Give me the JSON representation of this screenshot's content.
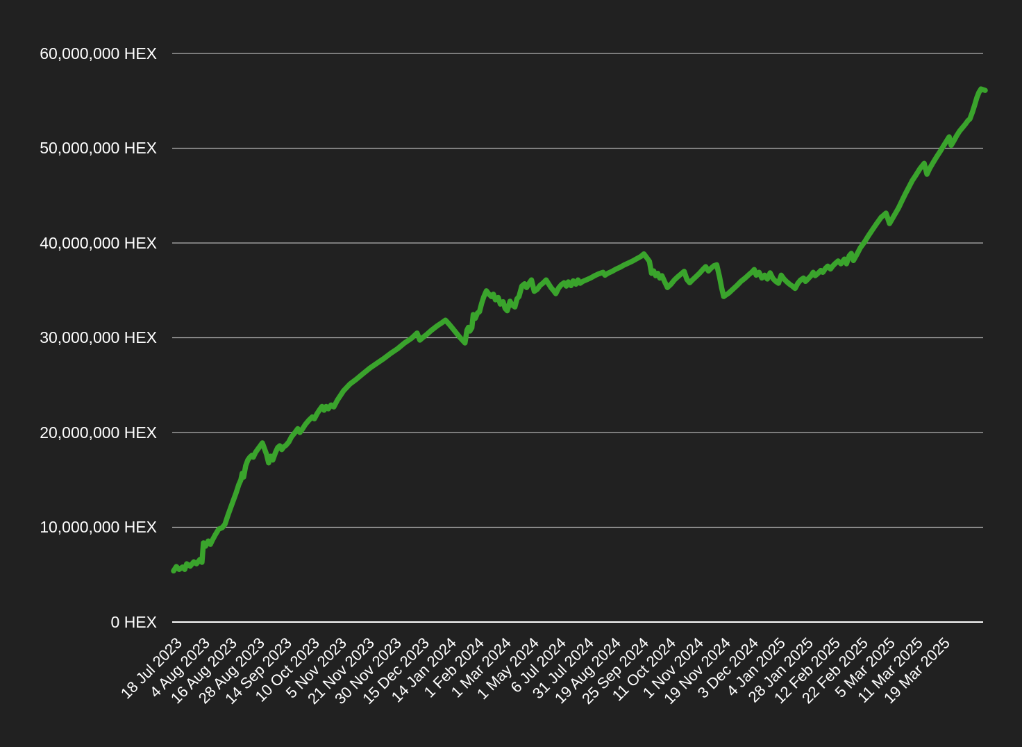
{
  "colors": {
    "background": "#212121",
    "line_green": "#3aa42c",
    "gridline_gray": "#b3b3b3",
    "axis_white": "#ffffff",
    "text_white": "#ffffff"
  },
  "chart_data": {
    "type": "line",
    "title": "",
    "xlabel": "",
    "ylabel": "",
    "grid": true,
    "legend_position": "none",
    "ylim_million_hex": [
      0,
      60
    ],
    "y_ticks": [
      {
        "label": "60,000,000 HEX",
        "value_million": 60
      },
      {
        "label": "50,000,000 HEX",
        "value_million": 50
      },
      {
        "label": "40,000,000 HEX",
        "value_million": 40
      },
      {
        "label": "30,000,000 HEX",
        "value_million": 30
      },
      {
        "label": "20,000,000 HEX",
        "value_million": 20
      },
      {
        "label": "10,000,000 HEX",
        "value_million": 10
      },
      {
        "label": "0 HEX",
        "value_million": 0
      }
    ],
    "x_tick_labels": [
      "18 Jul 2023",
      "4 Aug 2023",
      "16 Aug 2023",
      "28 Aug 2023",
      "14 Sep 2023",
      "10 Oct 2023",
      "5 Nov 2023",
      "21 Nov 2023",
      "30 Nov 2023",
      "15 Dec 2023",
      "14 Jan 2024",
      "1 Feb 2024",
      "1 Mar 2024",
      "1 May 2024",
      "6 Jul 2024",
      "31 Jul 2024",
      "19 Aug 2024",
      "25 Sep 2024",
      "11 Oct 2024",
      "1 Nov 2024",
      "19 Nov 2024",
      "3 Dec 2024",
      "4 Jan 2025",
      "28 Jan 2025",
      "12 Feb 2025",
      "22 Feb 2025",
      "5 Mar 2025",
      "11 Mar 2025",
      "19 Mar 2025"
    ],
    "series": [
      {
        "name": "HEX",
        "color": "#3aa42c",
        "x_unit": "fraction of x-axis from 18 Jul 2023 (0) to 19-22 Mar 2025 right edge (1)",
        "y_unit": "million HEX",
        "points": [
          [
            0.0,
            5.4
          ],
          [
            0.0034,
            5.85
          ],
          [
            0.0068,
            5.55
          ],
          [
            0.0111,
            5.8
          ],
          [
            0.0137,
            5.55
          ],
          [
            0.0162,
            6.15
          ],
          [
            0.0205,
            5.9
          ],
          [
            0.0248,
            6.35
          ],
          [
            0.0282,
            6.15
          ],
          [
            0.0325,
            6.6
          ],
          [
            0.035,
            6.3
          ],
          [
            0.0368,
            8.35
          ],
          [
            0.0393,
            8.0
          ],
          [
            0.0427,
            8.55
          ],
          [
            0.0453,
            8.2
          ],
          [
            0.0479,
            8.65
          ],
          [
            0.0513,
            9.2
          ],
          [
            0.0556,
            9.8
          ],
          [
            0.0598,
            9.95
          ],
          [
            0.0632,
            10.3
          ],
          [
            0.0667,
            11.2
          ],
          [
            0.0701,
            12.0
          ],
          [
            0.0735,
            12.8
          ],
          [
            0.0769,
            13.6
          ],
          [
            0.0803,
            14.5
          ],
          [
            0.0829,
            15.0
          ],
          [
            0.0846,
            15.7
          ],
          [
            0.0863,
            15.3
          ],
          [
            0.0889,
            16.5
          ],
          [
            0.0915,
            17.1
          ],
          [
            0.094,
            17.4
          ],
          [
            0.0966,
            17.6
          ],
          [
            0.0983,
            17.4
          ],
          [
            0.1009,
            17.9
          ],
          [
            0.1034,
            18.2
          ],
          [
            0.106,
            18.5
          ],
          [
            0.1094,
            18.9
          ],
          [
            0.112,
            18.3
          ],
          [
            0.1145,
            17.7
          ],
          [
            0.1171,
            16.8
          ],
          [
            0.1197,
            17.5
          ],
          [
            0.1222,
            17.1
          ],
          [
            0.1256,
            17.9
          ],
          [
            0.1282,
            18.4
          ],
          [
            0.1308,
            18.6
          ],
          [
            0.1333,
            18.2
          ],
          [
            0.1359,
            18.5
          ],
          [
            0.1385,
            18.65
          ],
          [
            0.1419,
            19.0
          ],
          [
            0.1453,
            19.55
          ],
          [
            0.1496,
            20.0
          ],
          [
            0.153,
            20.4
          ],
          [
            0.1556,
            20.0
          ],
          [
            0.159,
            20.4
          ],
          [
            0.1624,
            20.85
          ],
          [
            0.1667,
            21.3
          ],
          [
            0.1709,
            21.65
          ],
          [
            0.1735,
            21.45
          ],
          [
            0.1769,
            22.0
          ],
          [
            0.1803,
            22.45
          ],
          [
            0.1829,
            22.75
          ],
          [
            0.1855,
            22.35
          ],
          [
            0.188,
            22.75
          ],
          [
            0.1906,
            22.5
          ],
          [
            0.194,
            22.9
          ],
          [
            0.1974,
            22.7
          ],
          [
            0.2017,
            23.4
          ],
          [
            0.2094,
            24.4
          ],
          [
            0.2171,
            25.1
          ],
          [
            0.2248,
            25.6
          ],
          [
            0.2333,
            26.2
          ],
          [
            0.2419,
            26.8
          ],
          [
            0.2504,
            27.3
          ],
          [
            0.259,
            27.8
          ],
          [
            0.2675,
            28.35
          ],
          [
            0.2761,
            28.85
          ],
          [
            0.2846,
            29.45
          ],
          [
            0.2932,
            29.95
          ],
          [
            0.3,
            30.5
          ],
          [
            0.3034,
            29.75
          ],
          [
            0.3068,
            30.0
          ],
          [
            0.312,
            30.35
          ],
          [
            0.3179,
            30.8
          ],
          [
            0.3248,
            31.25
          ],
          [
            0.3308,
            31.6
          ],
          [
            0.335,
            31.85
          ],
          [
            0.3393,
            31.45
          ],
          [
            0.3436,
            31.0
          ],
          [
            0.3479,
            30.55
          ],
          [
            0.3521,
            30.1
          ],
          [
            0.3564,
            29.7
          ],
          [
            0.359,
            29.45
          ],
          [
            0.3615,
            30.8
          ],
          [
            0.3632,
            31.1
          ],
          [
            0.365,
            30.7
          ],
          [
            0.3675,
            31.05
          ],
          [
            0.3692,
            32.45
          ],
          [
            0.3718,
            32.05
          ],
          [
            0.3744,
            32.6
          ],
          [
            0.3769,
            32.75
          ],
          [
            0.3795,
            33.6
          ],
          [
            0.3821,
            34.3
          ],
          [
            0.3855,
            34.95
          ],
          [
            0.388,
            34.65
          ],
          [
            0.3915,
            34.35
          ],
          [
            0.394,
            34.6
          ],
          [
            0.3966,
            34.0
          ],
          [
            0.4,
            34.25
          ],
          [
            0.4026,
            33.55
          ],
          [
            0.406,
            33.8
          ],
          [
            0.4085,
            33.1
          ],
          [
            0.4111,
            32.85
          ],
          [
            0.4145,
            33.85
          ],
          [
            0.4171,
            33.45
          ],
          [
            0.4205,
            33.25
          ],
          [
            0.4231,
            34.1
          ],
          [
            0.4256,
            34.35
          ],
          [
            0.4291,
            35.45
          ],
          [
            0.4325,
            35.7
          ],
          [
            0.435,
            35.3
          ],
          [
            0.4385,
            35.8
          ],
          [
            0.441,
            36.1
          ],
          [
            0.4444,
            34.9
          ],
          [
            0.4479,
            35.1
          ],
          [
            0.4513,
            35.5
          ],
          [
            0.4556,
            35.8
          ],
          [
            0.459,
            36.1
          ],
          [
            0.4624,
            35.65
          ],
          [
            0.465,
            35.3
          ],
          [
            0.4684,
            34.95
          ],
          [
            0.4709,
            34.65
          ],
          [
            0.4744,
            35.25
          ],
          [
            0.4778,
            35.6
          ],
          [
            0.4812,
            35.8
          ],
          [
            0.4838,
            35.45
          ],
          [
            0.4863,
            35.9
          ],
          [
            0.4897,
            35.5
          ],
          [
            0.4923,
            36.0
          ],
          [
            0.4957,
            35.65
          ],
          [
            0.4983,
            36.1
          ],
          [
            0.5009,
            35.75
          ],
          [
            0.5043,
            35.95
          ],
          [
            0.5085,
            36.1
          ],
          [
            0.5137,
            36.3
          ],
          [
            0.5188,
            36.55
          ],
          [
            0.5239,
            36.75
          ],
          [
            0.5291,
            36.9
          ],
          [
            0.5316,
            36.6
          ],
          [
            0.535,
            36.8
          ],
          [
            0.5402,
            37.0
          ],
          [
            0.5453,
            37.25
          ],
          [
            0.5504,
            37.45
          ],
          [
            0.5556,
            37.7
          ],
          [
            0.5607,
            37.9
          ],
          [
            0.5658,
            38.1
          ],
          [
            0.5709,
            38.35
          ],
          [
            0.5761,
            38.6
          ],
          [
            0.5795,
            38.85
          ],
          [
            0.5838,
            38.35
          ],
          [
            0.5863,
            38.05
          ],
          [
            0.5889,
            36.8
          ],
          [
            0.5915,
            37.05
          ],
          [
            0.594,
            36.55
          ],
          [
            0.5966,
            36.8
          ],
          [
            0.5991,
            36.3
          ],
          [
            0.6017,
            36.55
          ],
          [
            0.6051,
            35.9
          ],
          [
            0.6085,
            35.3
          ],
          [
            0.6128,
            35.65
          ],
          [
            0.6171,
            36.1
          ],
          [
            0.6214,
            36.45
          ],
          [
            0.6256,
            36.75
          ],
          [
            0.6291,
            37.0
          ],
          [
            0.6325,
            36.15
          ],
          [
            0.6359,
            35.8
          ],
          [
            0.6393,
            36.1
          ],
          [
            0.6436,
            36.45
          ],
          [
            0.6479,
            36.8
          ],
          [
            0.6521,
            37.2
          ],
          [
            0.6556,
            37.5
          ],
          [
            0.659,
            37.05
          ],
          [
            0.6624,
            37.35
          ],
          [
            0.6658,
            37.6
          ],
          [
            0.6692,
            37.7
          ],
          [
            0.6726,
            36.45
          ],
          [
            0.6752,
            35.3
          ],
          [
            0.6778,
            34.35
          ],
          [
            0.6838,
            34.7
          ],
          [
            0.6889,
            35.1
          ],
          [
            0.694,
            35.5
          ],
          [
            0.6991,
            35.95
          ],
          [
            0.7043,
            36.3
          ],
          [
            0.7094,
            36.7
          ],
          [
            0.7128,
            36.95
          ],
          [
            0.7154,
            37.2
          ],
          [
            0.7179,
            36.6
          ],
          [
            0.7214,
            36.9
          ],
          [
            0.7248,
            36.3
          ],
          [
            0.7282,
            36.6
          ],
          [
            0.7316,
            36.2
          ],
          [
            0.735,
            36.85
          ],
          [
            0.7385,
            36.25
          ],
          [
            0.7419,
            35.95
          ],
          [
            0.7453,
            35.75
          ],
          [
            0.7487,
            36.6
          ],
          [
            0.7521,
            36.2
          ],
          [
            0.7556,
            35.9
          ],
          [
            0.759,
            35.65
          ],
          [
            0.7624,
            35.45
          ],
          [
            0.7658,
            35.2
          ],
          [
            0.7692,
            35.75
          ],
          [
            0.7726,
            36.1
          ],
          [
            0.7761,
            36.3
          ],
          [
            0.7786,
            35.95
          ],
          [
            0.7821,
            36.25
          ],
          [
            0.7855,
            36.55
          ],
          [
            0.788,
            36.9
          ],
          [
            0.7906,
            36.55
          ],
          [
            0.794,
            36.8
          ],
          [
            0.7974,
            37.1
          ],
          [
            0.8,
            36.9
          ],
          [
            0.8034,
            37.35
          ],
          [
            0.806,
            37.55
          ],
          [
            0.8094,
            37.25
          ],
          [
            0.812,
            37.55
          ],
          [
            0.8154,
            37.85
          ],
          [
            0.8188,
            38.1
          ],
          [
            0.8222,
            37.8
          ],
          [
            0.8265,
            38.3
          ],
          [
            0.8291,
            37.8
          ],
          [
            0.8325,
            38.65
          ],
          [
            0.835,
            38.9
          ],
          [
            0.8376,
            38.15
          ],
          [
            0.8419,
            38.8
          ],
          [
            0.8462,
            39.5
          ],
          [
            0.8513,
            40.1
          ],
          [
            0.8564,
            40.8
          ],
          [
            0.8615,
            41.45
          ],
          [
            0.8667,
            42.1
          ],
          [
            0.8718,
            42.7
          ],
          [
            0.8778,
            43.15
          ],
          [
            0.8821,
            42.05
          ],
          [
            0.8855,
            42.55
          ],
          [
            0.8889,
            43.05
          ],
          [
            0.8932,
            43.7
          ],
          [
            0.8974,
            44.45
          ],
          [
            0.9017,
            45.2
          ],
          [
            0.906,
            45.9
          ],
          [
            0.9103,
            46.6
          ],
          [
            0.9145,
            47.15
          ],
          [
            0.9197,
            47.85
          ],
          [
            0.9248,
            48.4
          ],
          [
            0.9282,
            47.25
          ],
          [
            0.9316,
            47.85
          ],
          [
            0.9359,
            48.5
          ],
          [
            0.9402,
            49.1
          ],
          [
            0.9444,
            49.65
          ],
          [
            0.9487,
            50.25
          ],
          [
            0.953,
            50.85
          ],
          [
            0.9556,
            51.2
          ],
          [
            0.9581,
            50.3
          ],
          [
            0.9615,
            50.8
          ],
          [
            0.965,
            51.35
          ],
          [
            0.9684,
            51.8
          ],
          [
            0.9718,
            52.15
          ],
          [
            0.9752,
            52.5
          ],
          [
            0.9786,
            52.9
          ],
          [
            0.9812,
            53.1
          ],
          [
            0.9846,
            53.9
          ],
          [
            0.9872,
            54.6
          ],
          [
            0.9897,
            55.35
          ],
          [
            0.9923,
            55.9
          ],
          [
            0.9949,
            56.25
          ],
          [
            1.0,
            56.1
          ]
        ]
      }
    ]
  }
}
